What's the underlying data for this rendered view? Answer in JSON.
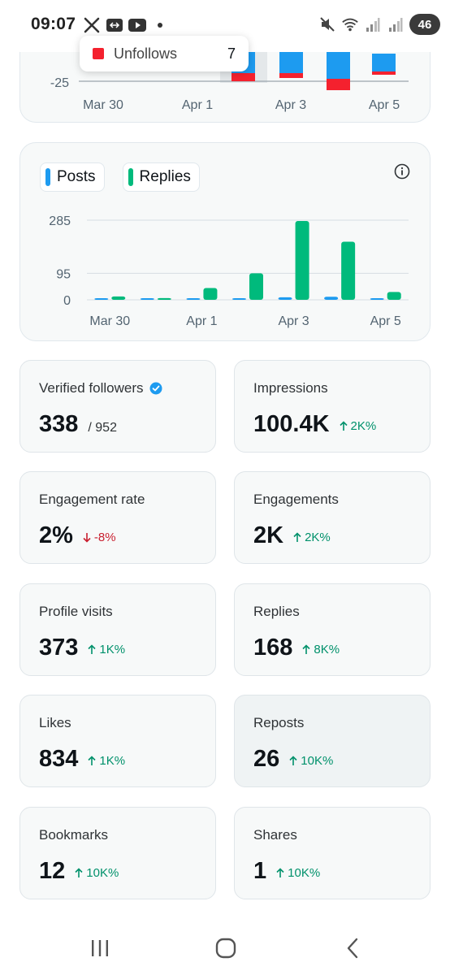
{
  "status_bar": {
    "time": "09:07",
    "left_icons": [
      "x-logo-icon",
      "signal-share-icon",
      "youtube-icon",
      "notification-dot"
    ],
    "right_icons": [
      "mute-icon",
      "wifi-icon",
      "cell-signal-icon",
      "cell-signal-icon"
    ],
    "battery": "46"
  },
  "top_chart": {
    "y_tick": "-25",
    "x_labels": [
      "Mar 30",
      "Apr 1",
      "Apr 3",
      "Apr 5"
    ],
    "tooltip": {
      "label": "Unfollows",
      "value": "7",
      "color": "#f4212e"
    }
  },
  "posts_replies": {
    "legend": [
      {
        "label": "Posts",
        "color": "#1d9bf0"
      },
      {
        "label": "Replies",
        "color": "#00ba7c"
      }
    ],
    "info_icon": "info-icon"
  },
  "chart_data": {
    "type": "bar",
    "categories": [
      "Mar 30",
      "Mar 31",
      "Apr 1",
      "Apr 2",
      "Apr 3",
      "Apr 4",
      "Apr 5"
    ],
    "x_tick_labels": [
      "Mar 30",
      "Apr 1",
      "Apr 3",
      "Apr 5"
    ],
    "y_ticks": [
      "285",
      "95",
      "0"
    ],
    "ylim": [
      0,
      285
    ],
    "series": [
      {
        "name": "Posts",
        "color": "#1d9bf0",
        "values": [
          4,
          3,
          4,
          4,
          9,
          11,
          5
        ]
      },
      {
        "name": "Replies",
        "color": "#00ba7c",
        "values": [
          12,
          6,
          42,
          95,
          282,
          208,
          28
        ]
      }
    ],
    "grid": true
  },
  "metrics": [
    {
      "label": "Verified followers",
      "value": "338",
      "sub": "/ 952",
      "verified": true
    },
    {
      "label": "Impressions",
      "value": "100.4K",
      "change": "2K%",
      "dir": "up"
    },
    {
      "label": "Engagement rate",
      "value": "2%",
      "change": "-8%",
      "dir": "down"
    },
    {
      "label": "Engagements",
      "value": "2K",
      "change": "2K%",
      "dir": "up"
    },
    {
      "label": "Profile visits",
      "value": "373",
      "change": "1K%",
      "dir": "up"
    },
    {
      "label": "Replies",
      "value": "168",
      "change": "8K%",
      "dir": "up"
    },
    {
      "label": "Likes",
      "value": "834",
      "change": "1K%",
      "dir": "up"
    },
    {
      "label": "Reposts",
      "value": "26",
      "change": "10K%",
      "dir": "up"
    },
    {
      "label": "Bookmarks",
      "value": "12",
      "change": "10K%",
      "dir": "up"
    },
    {
      "label": "Shares",
      "value": "1",
      "change": "10K%",
      "dir": "up"
    }
  ],
  "nav": [
    "recent-apps-icon",
    "home-icon",
    "back-icon"
  ]
}
